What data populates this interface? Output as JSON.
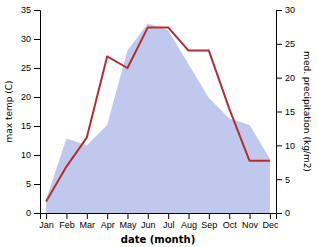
{
  "chart_data": {
    "type": "line",
    "categories": [
      "Jan",
      "Feb",
      "Mar",
      "Apr",
      "May",
      "Jun",
      "Jul",
      "Aug",
      "Sep",
      "Oct",
      "Nov",
      "Dec"
    ],
    "xlabel": "date (month)",
    "ylabel": "max temp (C)",
    "y2label": "med. precipitation (kg/m2)",
    "ylim": [
      0,
      35
    ],
    "yticks": [
      0,
      5,
      10,
      15,
      20,
      25,
      30,
      35
    ],
    "y2lim": [
      0,
      30
    ],
    "y2ticks": [
      0,
      5,
      10,
      15,
      20,
      25,
      30
    ],
    "series": [
      {
        "type": "area",
        "axis": "y2",
        "color": "#c0c8ee",
        "values": [
          2,
          11,
          10,
          13,
          24,
          28,
          27,
          22,
          17,
          14,
          13,
          8
        ]
      },
      {
        "type": "line",
        "color": "#b03030",
        "values": [
          2,
          8,
          13,
          27,
          25,
          32,
          32,
          28,
          28,
          18,
          9,
          9
        ]
      }
    ]
  }
}
